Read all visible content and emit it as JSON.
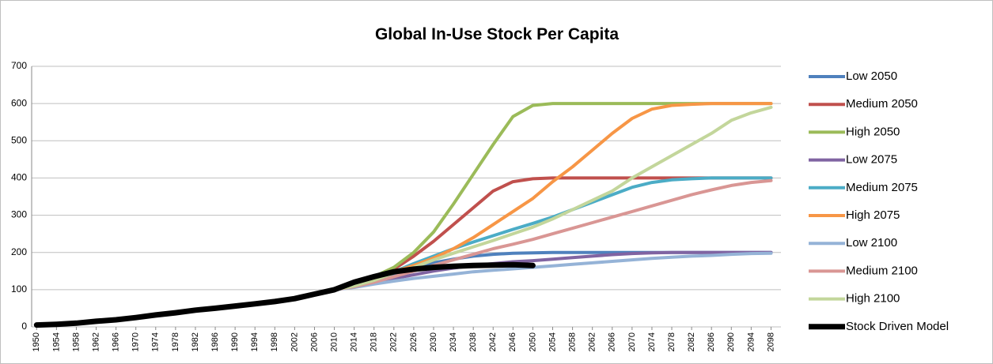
{
  "chart_data": {
    "type": "line",
    "title": "Global In-Use Stock Per Capita",
    "x": [
      1950,
      1954,
      1958,
      1962,
      1966,
      1970,
      1974,
      1978,
      1982,
      1986,
      1990,
      1994,
      1998,
      2002,
      2006,
      2010,
      2014,
      2018,
      2022,
      2026,
      2030,
      2034,
      2038,
      2042,
      2046,
      2050,
      2054,
      2058,
      2062,
      2066,
      2070,
      2074,
      2078,
      2082,
      2086,
      2090,
      2094,
      2098
    ],
    "xlim": [
      1949,
      2100
    ],
    "xticks": [
      1950,
      1954,
      1958,
      1962,
      1966,
      1970,
      1974,
      1978,
      1982,
      1986,
      1990,
      1994,
      1998,
      2002,
      2006,
      2010,
      2014,
      2018,
      2022,
      2026,
      2030,
      2034,
      2038,
      2042,
      2046,
      2050,
      2054,
      2058,
      2062,
      2066,
      2070,
      2074,
      2078,
      2082,
      2086,
      2090,
      2094,
      2098
    ],
    "ylim": [
      0,
      700
    ],
    "yticks": [
      0,
      100,
      200,
      300,
      400,
      500,
      600,
      700
    ],
    "grid": true,
    "series": [
      {
        "name": "Low 2050",
        "color": "#4f81bd",
        "values": [
          null,
          null,
          null,
          null,
          null,
          null,
          null,
          null,
          null,
          null,
          null,
          null,
          null,
          null,
          null,
          100,
          110,
          122,
          140,
          158,
          172,
          182,
          190,
          195,
          198,
          199,
          200,
          200,
          200,
          200,
          200,
          200,
          200,
          200,
          200,
          200,
          200,
          200
        ]
      },
      {
        "name": "Medium 2050",
        "color": "#c0504d",
        "values": [
          null,
          null,
          null,
          null,
          null,
          null,
          null,
          null,
          null,
          null,
          null,
          null,
          null,
          null,
          null,
          100,
          112,
          130,
          155,
          190,
          230,
          275,
          320,
          365,
          390,
          398,
          400,
          400,
          400,
          400,
          400,
          400,
          400,
          400,
          400,
          400,
          400,
          400
        ]
      },
      {
        "name": "High 2050",
        "color": "#9bbb59",
        "values": [
          null,
          null,
          null,
          null,
          null,
          null,
          null,
          null,
          null,
          null,
          null,
          null,
          null,
          null,
          null,
          100,
          115,
          135,
          160,
          200,
          255,
          330,
          410,
          490,
          565,
          595,
          600,
          600,
          600,
          600,
          600,
          600,
          600,
          600,
          600,
          600,
          600,
          600
        ]
      },
      {
        "name": "Low 2075",
        "color": "#8064a2",
        "values": [
          null,
          null,
          null,
          null,
          null,
          null,
          null,
          null,
          null,
          null,
          null,
          null,
          null,
          null,
          null,
          100,
          108,
          118,
          130,
          140,
          150,
          158,
          165,
          170,
          175,
          178,
          182,
          186,
          190,
          194,
          197,
          199,
          200,
          200,
          200,
          200,
          200,
          200
        ]
      },
      {
        "name": "Medium 2075",
        "color": "#4bacc6",
        "values": [
          null,
          null,
          null,
          null,
          null,
          null,
          null,
          null,
          null,
          null,
          null,
          null,
          null,
          null,
          null,
          100,
          112,
          128,
          148,
          170,
          190,
          210,
          228,
          245,
          262,
          278,
          295,
          315,
          335,
          355,
          375,
          388,
          395,
          398,
          400,
          400,
          400,
          400
        ]
      },
      {
        "name": "High 2075",
        "color": "#f79646",
        "values": [
          null,
          null,
          null,
          null,
          null,
          null,
          null,
          null,
          null,
          null,
          null,
          null,
          null,
          null,
          null,
          100,
          112,
          128,
          148,
          165,
          185,
          210,
          240,
          275,
          310,
          345,
          390,
          430,
          475,
          520,
          560,
          585,
          595,
          598,
          600,
          600,
          600,
          600
        ]
      },
      {
        "name": "Low 2100",
        "color": "#95b3d7",
        "values": [
          null,
          null,
          null,
          null,
          null,
          null,
          null,
          null,
          null,
          null,
          null,
          null,
          null,
          null,
          null,
          100,
          106,
          115,
          123,
          130,
          136,
          142,
          148,
          152,
          156,
          160,
          164,
          168,
          172,
          176,
          180,
          184,
          187,
          190,
          192,
          195,
          197,
          198
        ]
      },
      {
        "name": "Medium 2100",
        "color": "#d99694",
        "values": [
          null,
          null,
          null,
          null,
          null,
          null,
          null,
          null,
          null,
          null,
          null,
          null,
          null,
          null,
          null,
          100,
          108,
          120,
          135,
          150,
          165,
          180,
          195,
          210,
          222,
          235,
          250,
          265,
          280,
          295,
          310,
          325,
          340,
          355,
          368,
          380,
          388,
          393
        ]
      },
      {
        "name": "High 2100",
        "color": "#c3d69b",
        "values": [
          null,
          null,
          null,
          null,
          null,
          null,
          null,
          null,
          null,
          null,
          null,
          null,
          null,
          null,
          null,
          100,
          110,
          125,
          145,
          160,
          180,
          198,
          215,
          232,
          250,
          268,
          290,
          315,
          340,
          365,
          400,
          430,
          460,
          490,
          520,
          555,
          575,
          590
        ]
      },
      {
        "name": "Stock Driven Model",
        "color": "#000000",
        "values": [
          5,
          7,
          10,
          15,
          19,
          25,
          32,
          38,
          45,
          50,
          56,
          62,
          68,
          76,
          88,
          100,
          120,
          135,
          148,
          155,
          160,
          163,
          165,
          166,
          167,
          165,
          null,
          null,
          null,
          null,
          null,
          null,
          null,
          null,
          null,
          null,
          null,
          null
        ]
      }
    ],
    "legend": "right"
  }
}
